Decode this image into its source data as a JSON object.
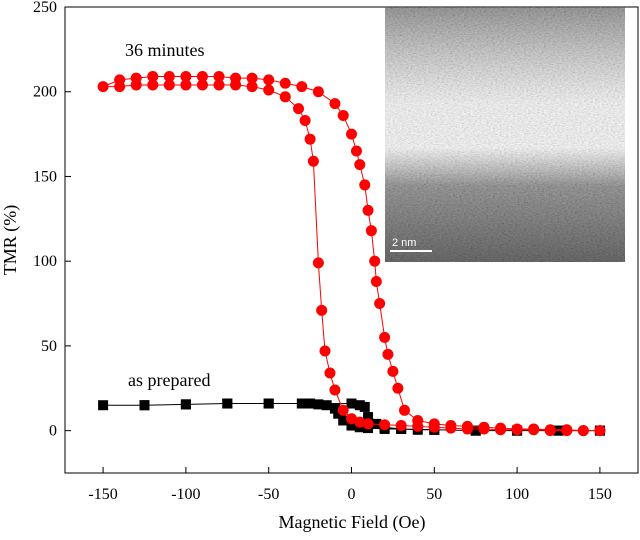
{
  "chart_data": {
    "type": "line",
    "xlabel": "Magnetic Field (Oe)",
    "ylabel": "TMR (%)",
    "inset_label": "2 nm",
    "xlim": [
      -173,
      173
    ],
    "ylim": [
      -25,
      250
    ],
    "xticks": [
      -150,
      -100,
      -50,
      0,
      50,
      100,
      150
    ],
    "yticks": [
      0,
      50,
      100,
      150,
      200,
      250
    ],
    "series": [
      {
        "name": "as prepared",
        "color": "#000000",
        "marker": "square",
        "x": [
          150,
          125,
          100,
          75,
          50,
          40,
          30,
          20,
          10,
          5,
          0,
          -5,
          -8,
          -10,
          -15,
          -20,
          -30,
          -50,
          -75,
          -100,
          -125,
          -150,
          -125,
          -100,
          -75,
          -50,
          -25,
          0,
          5,
          8,
          10,
          15,
          20,
          30,
          50,
          75,
          100,
          125,
          150
        ],
        "values": [
          0,
          0,
          0,
          0,
          0.5,
          0.5,
          1,
          1,
          1.5,
          2,
          3,
          6,
          10,
          13,
          15,
          15.5,
          16,
          16,
          16,
          15.5,
          15,
          15,
          15,
          15.5,
          16,
          16,
          16,
          16,
          15,
          14,
          8,
          4,
          2,
          1,
          0.5,
          0,
          0,
          0,
          0
        ]
      },
      {
        "name": "36 minutes",
        "color": "#ff0000",
        "marker": "circle",
        "x": [
          150,
          140,
          130,
          120,
          110,
          100,
          90,
          80,
          70,
          60,
          50,
          40,
          30,
          20,
          10,
          5,
          0,
          -5,
          -10,
          -13,
          -16,
          -18,
          -20,
          -23,
          -25,
          -28,
          -32,
          -40,
          -50,
          -60,
          -70,
          -80,
          -90,
          -100,
          -110,
          -120,
          -130,
          -140,
          -150,
          -140,
          -130,
          -120,
          -110,
          -100,
          -90,
          -80,
          -70,
          -60,
          -50,
          -40,
          -30,
          -20,
          -10,
          -5,
          0,
          3,
          5,
          8,
          10,
          12,
          14,
          15,
          17,
          20,
          22,
          25,
          28,
          32,
          40,
          50,
          60,
          70,
          80,
          90,
          100,
          110,
          120,
          130,
          140,
          150
        ],
        "values": [
          0,
          0,
          0,
          0,
          0.5,
          0.5,
          0.5,
          1,
          1,
          1.5,
          2,
          2.5,
          3,
          3.5,
          4,
          5,
          7,
          12,
          24,
          34,
          47,
          71,
          99,
          159,
          172,
          183,
          190,
          197,
          201,
          203,
          204,
          204,
          204,
          204,
          204,
          204,
          204,
          203,
          203,
          207,
          208,
          209,
          209,
          209,
          209,
          209,
          208,
          208,
          207,
          205,
          203,
          200,
          193,
          186,
          175,
          165,
          157,
          145,
          130,
          118,
          100,
          88,
          75,
          55,
          45,
          35,
          25,
          12,
          6,
          4,
          3,
          2.5,
          2,
          1.5,
          1,
          1,
          0.5,
          0.5,
          0,
          0
        ]
      }
    ]
  }
}
